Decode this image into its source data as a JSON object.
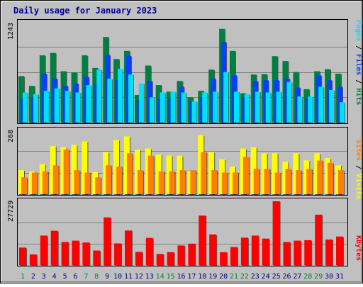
{
  "chart_data": [
    {
      "type": "bar",
      "title": "Daily usage for January 2023",
      "categories": [
        "1",
        "2",
        "3",
        "4",
        "5",
        "6",
        "7",
        "8",
        "9",
        "10",
        "11",
        "12",
        "13",
        "14",
        "15",
        "16",
        "17",
        "18",
        "19",
        "20",
        "21",
        "22",
        "23",
        "24",
        "25",
        "26",
        "27",
        "28",
        "29",
        "30",
        "31"
      ],
      "weekend_days": [
        "1",
        "7",
        "8",
        "14",
        "15",
        "21",
        "22",
        "28",
        "29"
      ],
      "ymax_label": "1243",
      "ylim": [
        0,
        1243
      ],
      "grid": true,
      "legend": [
        {
          "label": "Hits",
          "color": "#008040"
        },
        {
          "label": "Files",
          "color": "#0040ff"
        },
        {
          "label": "Pages",
          "color": "#00e0ff"
        }
      ],
      "series": [
        {
          "name": "Hits",
          "color": "#008040",
          "values": [
            570,
            450,
            825,
            855,
            630,
            615,
            825,
            670,
            1050,
            780,
            880,
            340,
            700,
            460,
            380,
            510,
            310,
            390,
            650,
            1150,
            880,
            360,
            590,
            595,
            815,
            755,
            620,
            410,
            630,
            655,
            600
          ]
        },
        {
          "name": "Files",
          "color": "#0040ff",
          "values": [
            300,
            310,
            600,
            540,
            450,
            480,
            560,
            480,
            830,
            520,
            820,
            280,
            510,
            300,
            300,
            440,
            260,
            310,
            540,
            990,
            580,
            310,
            510,
            520,
            520,
            540,
            430,
            300,
            580,
            520,
            440
          ]
        },
        {
          "name": "Pages",
          "color": "#00e0ff",
          "values": [
            370,
            350,
            390,
            420,
            390,
            370,
            460,
            650,
            540,
            660,
            590,
            480,
            310,
            370,
            380,
            370,
            260,
            370,
            380,
            620,
            380,
            350,
            380,
            370,
            380,
            500,
            320,
            320,
            440,
            400,
            250
          ]
        }
      ]
    },
    {
      "type": "bar",
      "categories": [
        "1",
        "2",
        "3",
        "4",
        "5",
        "6",
        "7",
        "8",
        "9",
        "10",
        "11",
        "12",
        "13",
        "14",
        "15",
        "16",
        "17",
        "18",
        "19",
        "20",
        "21",
        "22",
        "23",
        "24",
        "25",
        "26",
        "27",
        "28",
        "29",
        "30",
        "31"
      ],
      "ymax_label": "268",
      "ylim": [
        0,
        268
      ],
      "grid": true,
      "legend": [
        {
          "label": "Visits",
          "color": "#ffff00"
        },
        {
          "label": "Sites",
          "color": "#ff8000"
        }
      ],
      "series": [
        {
          "name": "Visits",
          "color": "#ffff00",
          "values": [
            100,
            95,
            125,
            200,
            195,
            205,
            220,
            92,
            175,
            225,
            240,
            185,
            190,
            165,
            160,
            160,
            95,
            245,
            175,
            145,
            115,
            190,
            195,
            170,
            170,
            135,
            170,
            140,
            170,
            150,
            120
          ]
        },
        {
          "name": "Sites",
          "color": "#ff8000",
          "values": [
            70,
            90,
            95,
            120,
            185,
            100,
            90,
            70,
            120,
            115,
            170,
            100,
            160,
            95,
            95,
            100,
            100,
            175,
            100,
            90,
            90,
            155,
            105,
            105,
            90,
            105,
            100,
            105,
            140,
            130,
            100
          ]
        }
      ]
    },
    {
      "type": "bar",
      "categories": [
        "1",
        "2",
        "3",
        "4",
        "5",
        "6",
        "7",
        "8",
        "9",
        "10",
        "11",
        "12",
        "13",
        "14",
        "15",
        "16",
        "17",
        "18",
        "19",
        "20",
        "21",
        "22",
        "23",
        "24",
        "25",
        "26",
        "27",
        "28",
        "29",
        "30",
        "31"
      ],
      "ymax_label": "27729",
      "ylim": [
        0,
        27729
      ],
      "grid": true,
      "legend": [
        {
          "label": "KBytes",
          "color": "#ff0000"
        }
      ],
      "series": [
        {
          "name": "KBytes",
          "color": "#ff0000",
          "values": [
            7600,
            4600,
            12800,
            14900,
            10000,
            10600,
            9800,
            6300,
            20700,
            9400,
            15000,
            5700,
            11800,
            4800,
            5600,
            8500,
            9300,
            21500,
            13300,
            5600,
            7800,
            11900,
            12800,
            11500,
            27729,
            10000,
            10600,
            10800,
            21900,
            11100,
            12400
          ]
        }
      ]
    }
  ]
}
